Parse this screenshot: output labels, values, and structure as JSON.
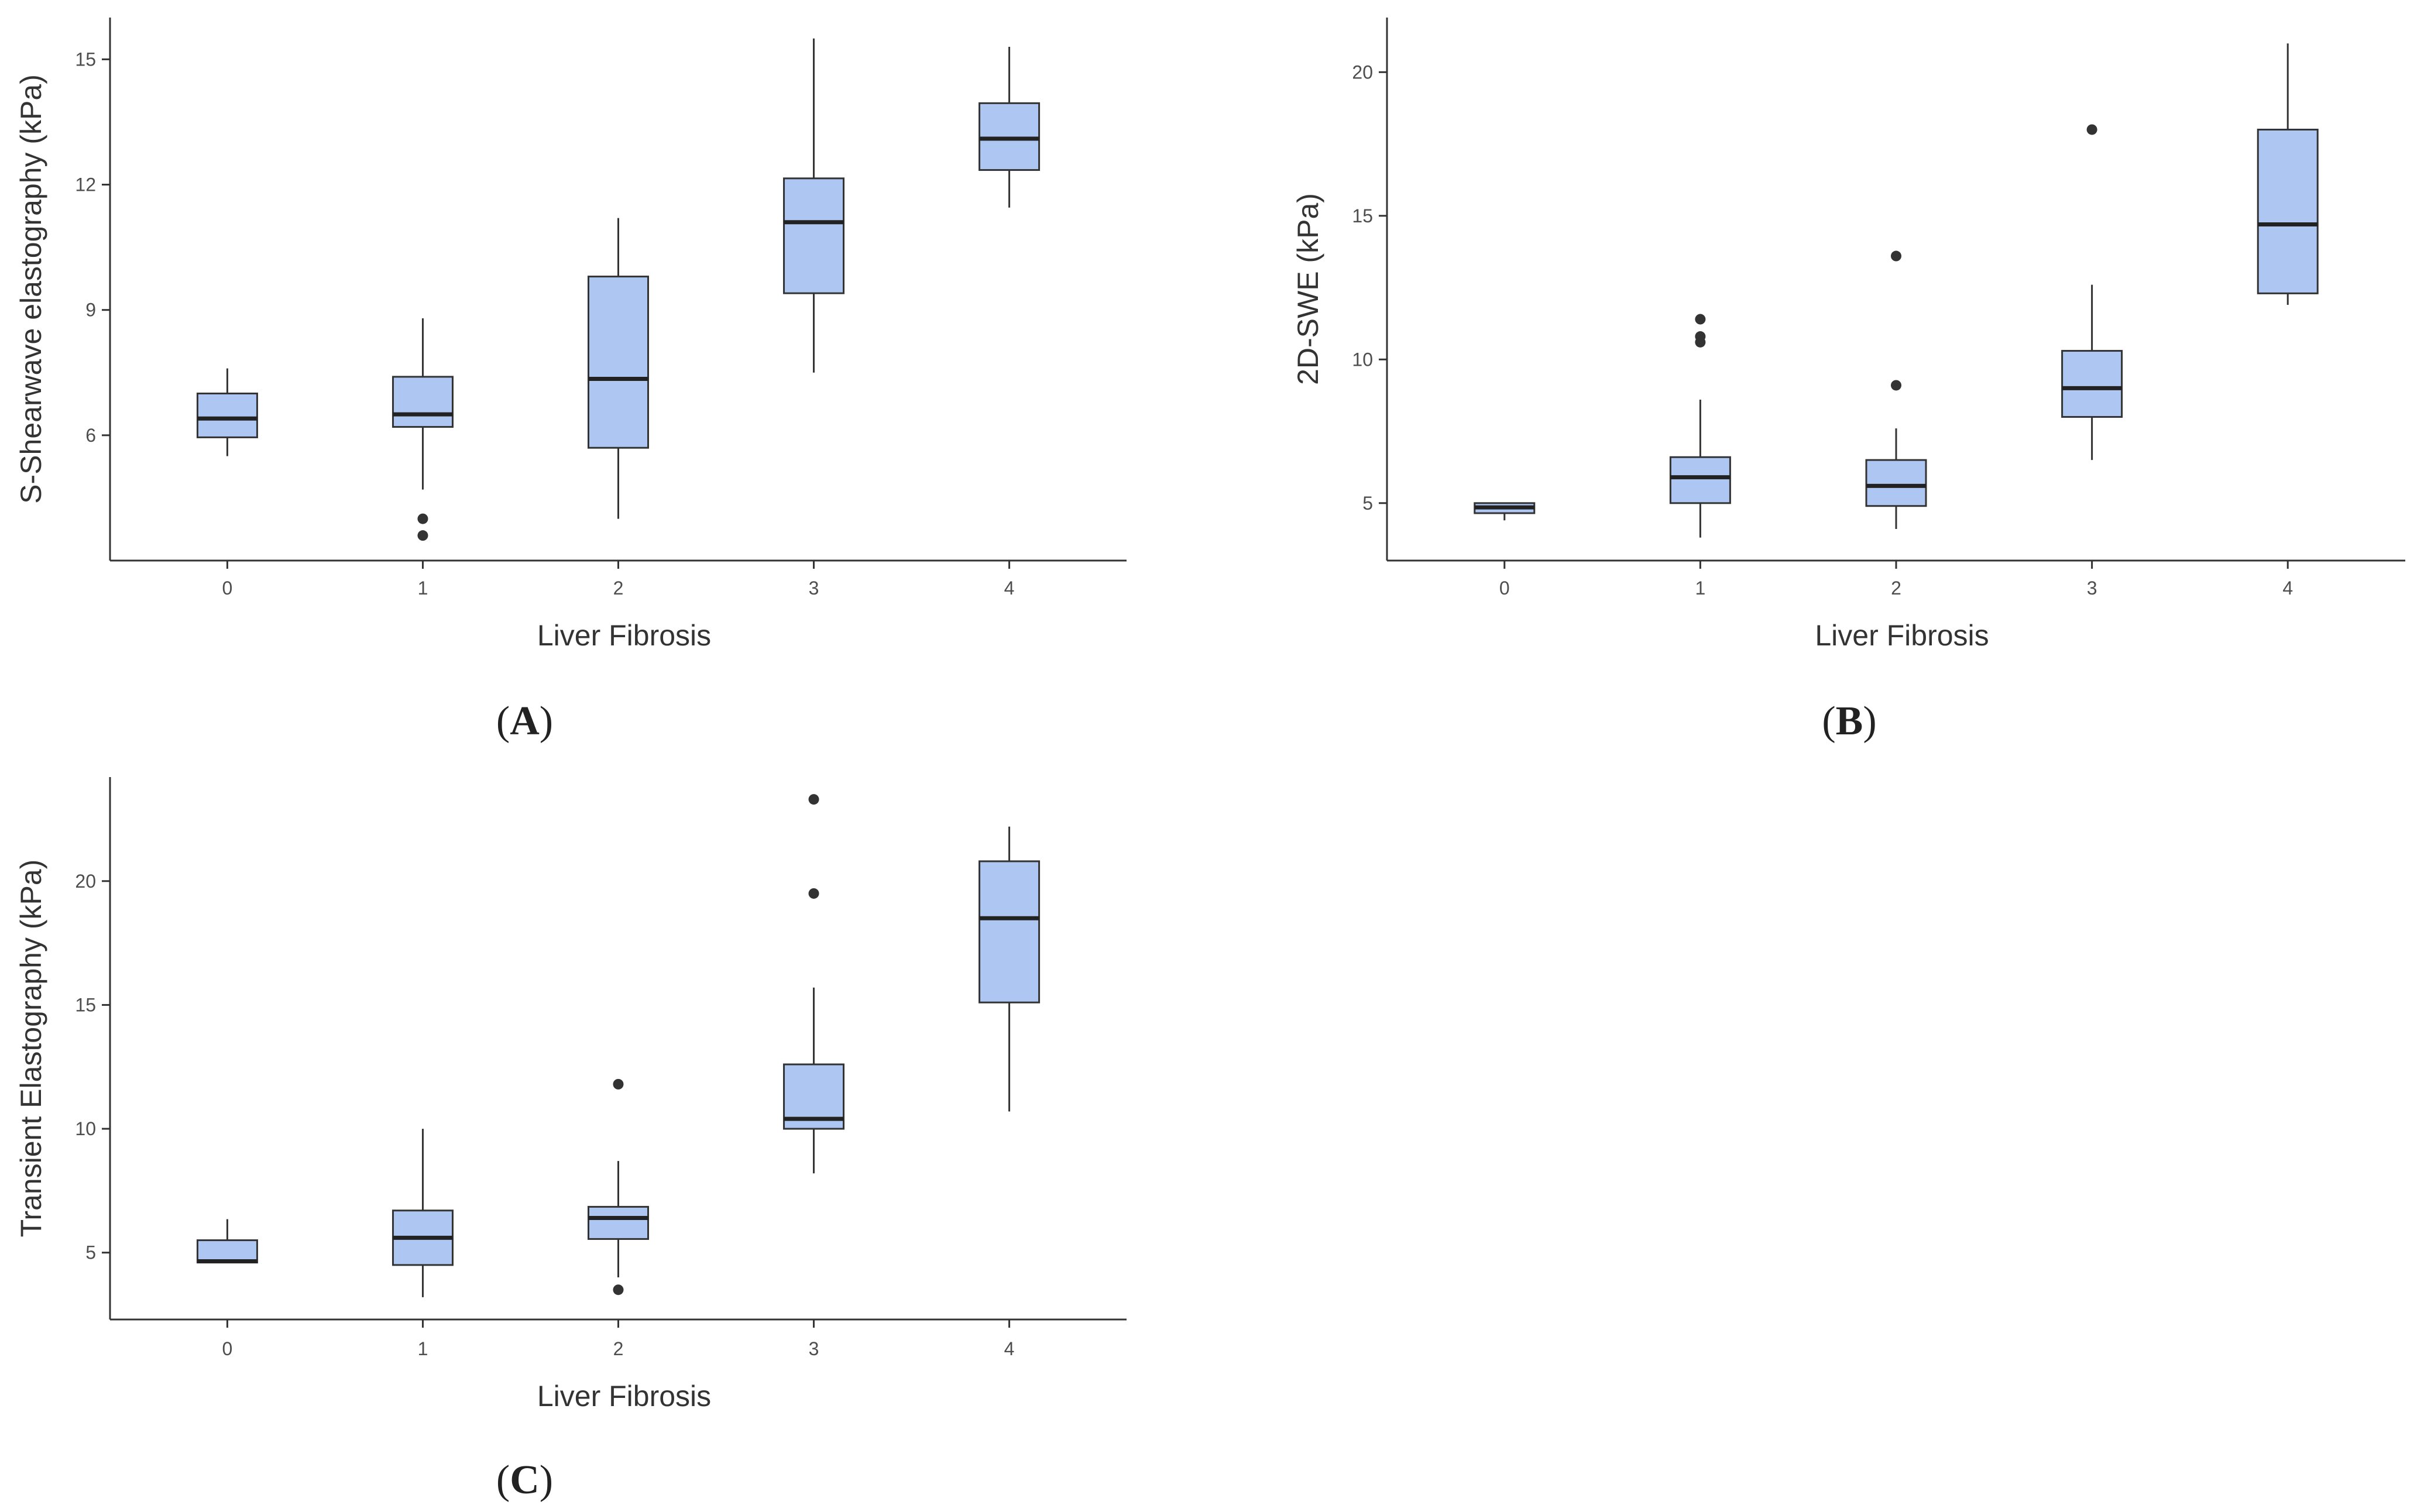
{
  "chart_data": [
    {
      "type": "boxplot",
      "panel_label": "A",
      "xlabel": "Liver Fibrosis",
      "ylabel": "S-Shearwave elastography (kPa)",
      "ylim": [
        3.0,
        16.0
      ],
      "yticks": [
        6,
        9,
        12,
        15
      ],
      "categories": [
        "0",
        "1",
        "2",
        "3",
        "4"
      ],
      "boxes": [
        {
          "category": "0",
          "whisker_low": 5.5,
          "q1": 5.95,
          "median": 6.4,
          "q3": 7.0,
          "whisker_high": 7.6,
          "outliers": []
        },
        {
          "category": "1",
          "whisker_low": 4.7,
          "q1": 6.2,
          "median": 6.5,
          "q3": 7.4,
          "whisker_high": 8.8,
          "outliers": [
            4.0,
            3.6
          ]
        },
        {
          "category": "2",
          "whisker_low": 4.0,
          "q1": 5.7,
          "median": 7.35,
          "q3": 9.8,
          "whisker_high": 11.2,
          "outliers": []
        },
        {
          "category": "3",
          "whisker_low": 7.5,
          "q1": 9.4,
          "median": 11.1,
          "q3": 12.15,
          "whisker_high": 15.5,
          "outliers": []
        },
        {
          "category": "4",
          "whisker_low": 11.45,
          "q1": 12.35,
          "median": 13.1,
          "q3": 13.95,
          "whisker_high": 15.3,
          "outliers": []
        }
      ]
    },
    {
      "type": "boxplot",
      "panel_label": "B",
      "xlabel": "Liver Fibrosis",
      "ylabel": "2D-SWE (kPa)",
      "ylim": [
        3.0,
        21.9
      ],
      "yticks": [
        5,
        10,
        15,
        20
      ],
      "categories": [
        "0",
        "1",
        "2",
        "3",
        "4"
      ],
      "boxes": [
        {
          "category": "0",
          "whisker_low": 4.4,
          "q1": 4.65,
          "median": 4.85,
          "q3": 5.0,
          "whisker_high": 5.0,
          "outliers": []
        },
        {
          "category": "1",
          "whisker_low": 3.8,
          "q1": 5.0,
          "median": 5.9,
          "q3": 6.6,
          "whisker_high": 8.6,
          "outliers": [
            11.4,
            10.8,
            10.6
          ]
        },
        {
          "category": "2",
          "whisker_low": 4.1,
          "q1": 4.9,
          "median": 5.6,
          "q3": 6.5,
          "whisker_high": 7.6,
          "outliers": [
            13.6,
            9.1
          ]
        },
        {
          "category": "3",
          "whisker_low": 6.5,
          "q1": 8.0,
          "median": 9.0,
          "q3": 10.3,
          "whisker_high": 12.6,
          "outliers": [
            18.0
          ]
        },
        {
          "category": "4",
          "whisker_low": 11.9,
          "q1": 12.3,
          "median": 14.7,
          "q3": 18.0,
          "whisker_high": 21.0,
          "outliers": []
        }
      ]
    },
    {
      "type": "boxplot",
      "panel_label": "C",
      "xlabel": "Liver Fibrosis",
      "ylabel": "Transient Elastography (kPa)",
      "ylim": [
        2.3,
        24.2
      ],
      "yticks": [
        5,
        10,
        15,
        20
      ],
      "categories": [
        "0",
        "1",
        "2",
        "3",
        "4"
      ],
      "boxes": [
        {
          "category": "0",
          "whisker_low": 4.6,
          "q1": 4.6,
          "median": 4.65,
          "q3": 5.5,
          "whisker_high": 6.35,
          "outliers": []
        },
        {
          "category": "1",
          "whisker_low": 3.2,
          "q1": 4.5,
          "median": 5.6,
          "q3": 6.7,
          "whisker_high": 10.0,
          "outliers": []
        },
        {
          "category": "2",
          "whisker_low": 4.0,
          "q1": 5.55,
          "median": 6.4,
          "q3": 6.85,
          "whisker_high": 8.7,
          "outliers": [
            11.8,
            3.5
          ]
        },
        {
          "category": "3",
          "whisker_low": 8.2,
          "q1": 10.0,
          "median": 10.4,
          "q3": 12.6,
          "whisker_high": 15.7,
          "outliers": [
            23.3,
            19.5
          ]
        },
        {
          "category": "4",
          "whisker_low": 10.7,
          "q1": 15.1,
          "median": 18.5,
          "q3": 20.8,
          "whisker_high": 22.2,
          "outliers": []
        }
      ]
    }
  ],
  "colors": {
    "box_fill": "#aec7f2",
    "box_stroke": "#333333",
    "median": "#222222",
    "outlier": "#333333"
  }
}
